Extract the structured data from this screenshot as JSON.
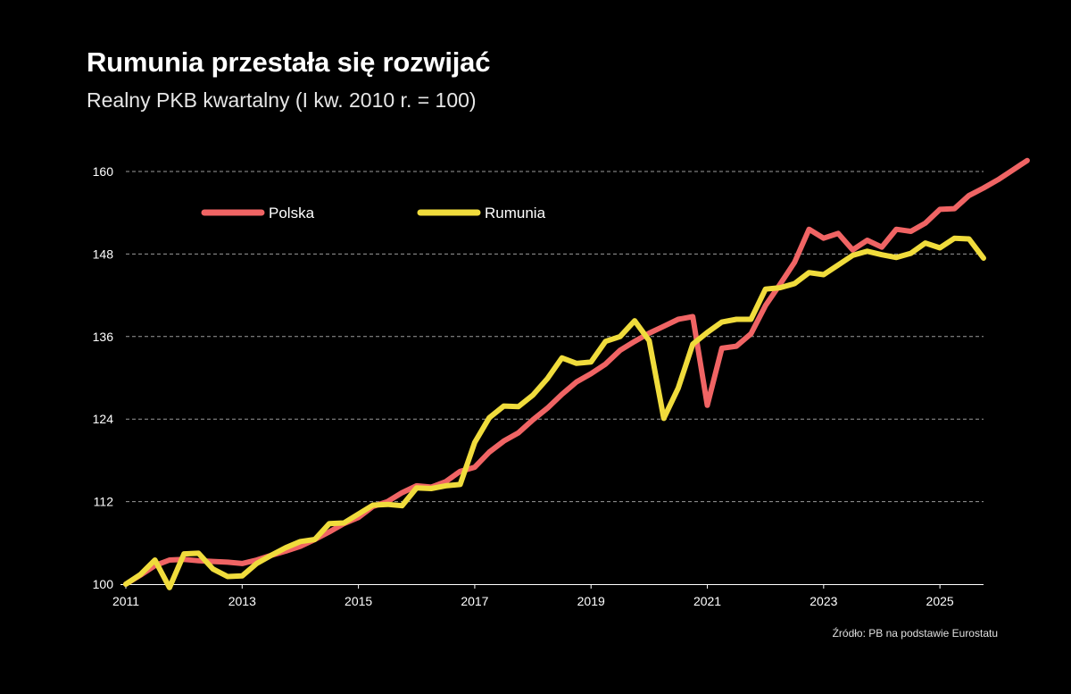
{
  "title": "Rumunia przestała się rozwijać",
  "subtitle": "Realny PKB kwartalny (I kw. 2010 r. = 100)",
  "source": "Źródło: PB na podstawie Eurostatu",
  "colors": {
    "background": "#000000",
    "polska": "#f06464",
    "rumunia": "#f0dc3c",
    "grid": "#9a9a9a",
    "text": "#ffffff"
  },
  "chart_data": {
    "type": "line",
    "x_start": 2011.0,
    "x_step": 0.25,
    "xlim": [
      2011.0,
      2025.75
    ],
    "ylim": [
      100,
      162
    ],
    "y_ticks": [
      100,
      112,
      124,
      136,
      148,
      160
    ],
    "x_ticks": [
      2011,
      2013,
      2015,
      2017,
      2019,
      2021,
      2023,
      2025
    ],
    "grid": "horizontal dashed",
    "legend_placement": "top-left",
    "series": [
      {
        "name": "Polska",
        "color": "#f06464",
        "values": [
          100.0,
          101.3,
          102.7,
          103.5,
          103.6,
          103.4,
          103.3,
          103.2,
          103.0,
          103.5,
          104.2,
          104.8,
          105.5,
          106.5,
          107.6,
          108.8,
          109.7,
          111.3,
          112.0,
          113.3,
          114.3,
          114.1,
          114.9,
          116.4,
          117.0,
          119.2,
          120.8,
          122.0,
          123.9,
          125.6,
          127.6,
          129.4,
          130.6,
          132.0,
          134.0,
          135.3,
          136.5,
          137.5,
          138.5,
          138.9,
          126.0,
          134.3,
          134.6,
          136.4,
          140.5,
          143.6,
          146.8,
          151.6,
          150.3,
          151.0,
          148.6,
          150.0,
          149.0,
          151.6,
          151.3,
          152.5,
          154.5,
          154.6,
          156.5,
          157.6,
          158.8,
          160.2,
          161.6
        ]
      },
      {
        "name": "Rumunia",
        "color": "#f0dc3c",
        "values": [
          100.0,
          101.4,
          103.5,
          99.5,
          104.4,
          104.5,
          102.2,
          101.1,
          101.2,
          103.0,
          104.2,
          105.3,
          106.2,
          106.5,
          108.8,
          108.9,
          110.2,
          111.5,
          111.6,
          111.4,
          114.0,
          113.9,
          114.3,
          114.5,
          120.6,
          124.2,
          125.9,
          125.8,
          127.5,
          129.9,
          132.9,
          132.1,
          132.3,
          135.3,
          136.0,
          138.3,
          135.4,
          124.1,
          128.5,
          134.9,
          136.6,
          138.1,
          138.5,
          138.5,
          142.9,
          143.1,
          143.7,
          145.3,
          145.0,
          146.4,
          147.8,
          148.4,
          147.9,
          147.5,
          148.1,
          149.6,
          148.9,
          150.3,
          150.2,
          147.4
        ]
      }
    ]
  }
}
